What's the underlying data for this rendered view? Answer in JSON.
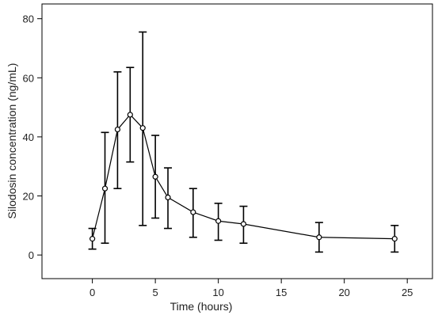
{
  "chart_data": {
    "type": "scatter",
    "title": "",
    "xlabel": "Time (hours)",
    "ylabel": "Silodosin concentration (ng/mL)",
    "xlim": [
      -4,
      27
    ],
    "ylim": [
      -8,
      85
    ],
    "xticks": [
      0,
      5,
      10,
      15,
      20,
      25
    ],
    "yticks": [
      0,
      20,
      40,
      60,
      80
    ],
    "grid": false,
    "series": [
      {
        "points": [
          {
            "x": 0,
            "y": 5.5,
            "lower": 2,
            "upper": 9
          },
          {
            "x": 1,
            "y": 22.5,
            "lower": 4,
            "upper": 41.5
          },
          {
            "x": 2,
            "y": 42.5,
            "lower": 22.5,
            "upper": 62
          },
          {
            "x": 3,
            "y": 47.5,
            "lower": 31.5,
            "upper": 63.5
          },
          {
            "x": 4,
            "y": 43,
            "lower": 10,
            "upper": 75.5
          },
          {
            "x": 5,
            "y": 26.5,
            "lower": 12.5,
            "upper": 40.5
          },
          {
            "x": 6,
            "y": 19.5,
            "lower": 9,
            "upper": 29.5
          },
          {
            "x": 8,
            "y": 14.5,
            "lower": 6,
            "upper": 22.5
          },
          {
            "x": 10,
            "y": 11.5,
            "lower": 5,
            "upper": 17.5
          },
          {
            "x": 12,
            "y": 10.5,
            "lower": 4,
            "upper": 16.5
          },
          {
            "x": 18,
            "y": 6,
            "lower": 1,
            "upper": 11
          },
          {
            "x": 24,
            "y": 5.5,
            "lower": 1,
            "upper": 10
          }
        ]
      }
    ]
  }
}
